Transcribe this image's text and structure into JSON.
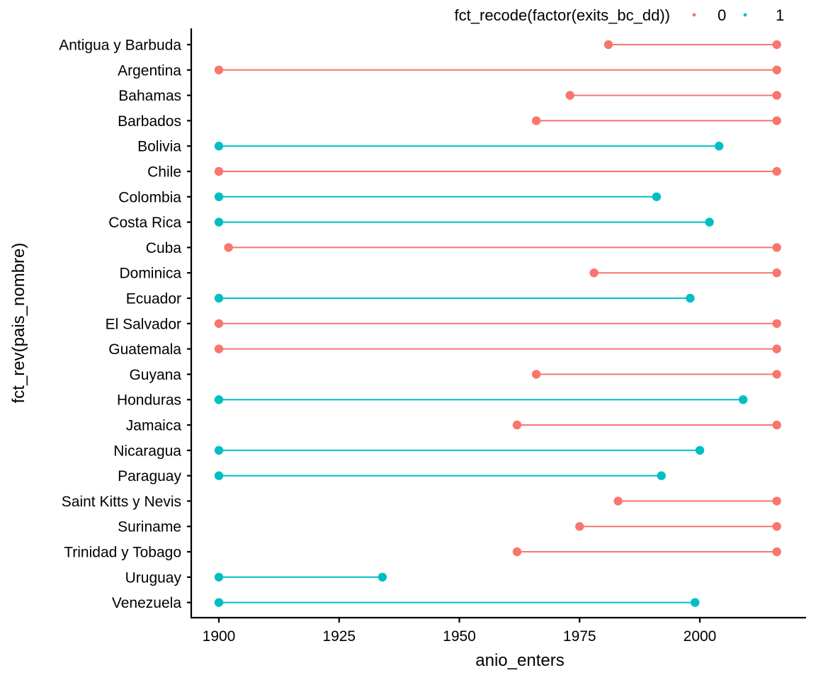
{
  "chart_data": {
    "type": "dumbbell",
    "title": "",
    "xlabel": "anio_enters",
    "ylabel": "fct_rev(pais_nombre)",
    "xlim": [
      1896,
      2021
    ],
    "xticks": [
      1900,
      1925,
      1950,
      1975,
      2000
    ],
    "grid": false,
    "legend": {
      "title": "fct_recode(factor(exits_bc_dd))",
      "position": "top-right",
      "entries": [
        {
          "label": "0",
          "color": "#F8766D"
        },
        {
          "label": "1",
          "color": "#00BFC4"
        }
      ]
    },
    "categories": [
      "Antigua y Barbuda",
      "Argentina",
      "Bahamas",
      "Barbados",
      "Bolivia",
      "Chile",
      "Colombia",
      "Costa Rica",
      "Cuba",
      "Dominica",
      "Ecuador",
      "El Salvador",
      "Guatemala",
      "Guyana",
      "Honduras",
      "Jamaica",
      "Nicaragua",
      "Paraguay",
      "Saint Kitts y Nevis",
      "Suriname",
      "Trinidad y Tobago",
      "Uruguay",
      "Venezuela"
    ],
    "rows": [
      {
        "country": "Antigua y Barbuda",
        "start": 1981,
        "end": 2016,
        "group": "0"
      },
      {
        "country": "Argentina",
        "start": 1900,
        "end": 2016,
        "group": "0"
      },
      {
        "country": "Bahamas",
        "start": 1973,
        "end": 2016,
        "group": "0"
      },
      {
        "country": "Barbados",
        "start": 1966,
        "end": 2016,
        "group": "0"
      },
      {
        "country": "Bolivia",
        "start": 1900,
        "end": 2004,
        "group": "1"
      },
      {
        "country": "Chile",
        "start": 1900,
        "end": 2016,
        "group": "0"
      },
      {
        "country": "Colombia",
        "start": 1900,
        "end": 1991,
        "group": "1"
      },
      {
        "country": "Costa Rica",
        "start": 1900,
        "end": 2002,
        "group": "1"
      },
      {
        "country": "Cuba",
        "start": 1902,
        "end": 2016,
        "group": "0"
      },
      {
        "country": "Dominica",
        "start": 1978,
        "end": 2016,
        "group": "0"
      },
      {
        "country": "Ecuador",
        "start": 1900,
        "end": 1998,
        "group": "1"
      },
      {
        "country": "El Salvador",
        "start": 1900,
        "end": 2016,
        "group": "0"
      },
      {
        "country": "Guatemala",
        "start": 1900,
        "end": 2016,
        "group": "0"
      },
      {
        "country": "Guyana",
        "start": 1966,
        "end": 2016,
        "group": "0"
      },
      {
        "country": "Honduras",
        "start": 1900,
        "end": 2009,
        "group": "1"
      },
      {
        "country": "Jamaica",
        "start": 1962,
        "end": 2016,
        "group": "0"
      },
      {
        "country": "Nicaragua",
        "start": 1900,
        "end": 2000,
        "group": "1"
      },
      {
        "country": "Paraguay",
        "start": 1900,
        "end": 1992,
        "group": "1"
      },
      {
        "country": "Saint Kitts y Nevis",
        "start": 1983,
        "end": 2016,
        "group": "0"
      },
      {
        "country": "Suriname",
        "start": 1975,
        "end": 2016,
        "group": "0"
      },
      {
        "country": "Trinidad y Tobago",
        "start": 1962,
        "end": 2016,
        "group": "0"
      },
      {
        "country": "Uruguay",
        "start": 1900,
        "end": 1934,
        "group": "1"
      },
      {
        "country": "Venezuela",
        "start": 1900,
        "end": 1999,
        "group": "1"
      }
    ]
  }
}
